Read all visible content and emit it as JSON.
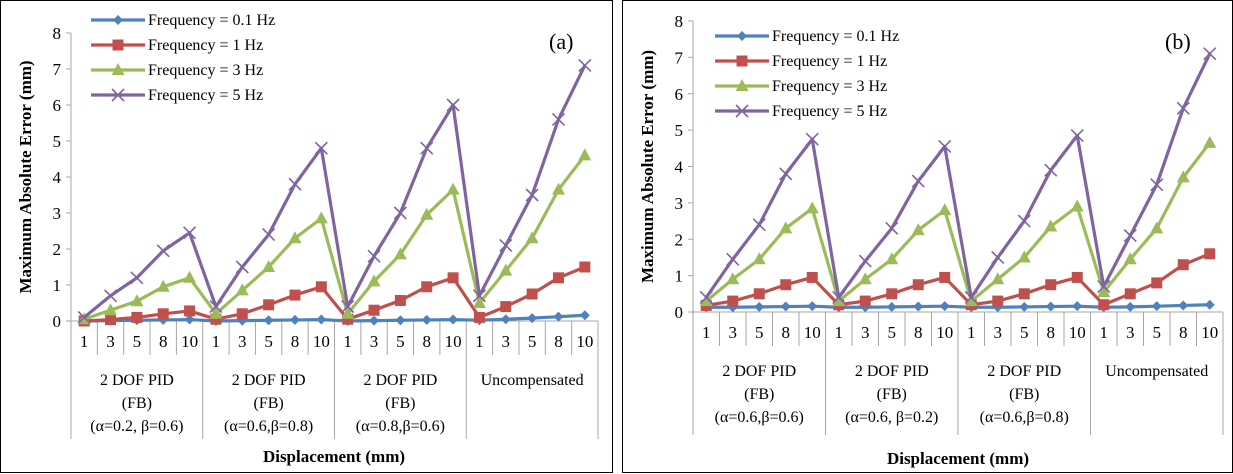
{
  "colors": {
    "f01": "#4F81BD",
    "f1": "#C0504D",
    "f3": "#9BBB59",
    "f5": "#8064A2",
    "axis": "#A6A6A6",
    "text": "#000000"
  },
  "chart_data": [
    {
      "type": "line",
      "panel_label": "(a)",
      "xlabel": "Displacement (mm)",
      "ylabel": "Maximum Absolute Error (mm)",
      "ylim": [
        0,
        8
      ],
      "yticks": [
        "0",
        "1",
        "2",
        "3",
        "4",
        "5",
        "6",
        "7",
        "8"
      ],
      "grid": false,
      "legend_position": "top-left",
      "categories": [
        "1",
        "3",
        "5",
        "8",
        "10",
        "1",
        "3",
        "5",
        "8",
        "10",
        "1",
        "3",
        "5",
        "8",
        "10",
        "1",
        "3",
        "5",
        "8",
        "10"
      ],
      "groups": [
        {
          "lines": [
            "2 DOF PID",
            "(FB)",
            "(α=0.2, β=0.6)"
          ]
        },
        {
          "lines": [
            "2 DOF PID",
            "(FB)",
            "(α=0.6,β=0.8)"
          ]
        },
        {
          "lines": [
            "2 DOF PID",
            "(FB)",
            "(α=0.8,β=0.6)"
          ]
        },
        {
          "lines": [
            "Uncompensated"
          ]
        }
      ],
      "series": [
        {
          "name": "Frequency = 0.1 Hz",
          "color_key": "f01",
          "marker": "diamond",
          "values": [
            0.0,
            0.01,
            0.02,
            0.03,
            0.04,
            0.0,
            0.01,
            0.02,
            0.03,
            0.04,
            0.0,
            0.01,
            0.02,
            0.03,
            0.04,
            0.02,
            0.05,
            0.08,
            0.12,
            0.16
          ]
        },
        {
          "name": "Frequency = 1 Hz",
          "color_key": "f1",
          "marker": "square",
          "values": [
            0.0,
            0.04,
            0.1,
            0.2,
            0.28,
            0.05,
            0.2,
            0.45,
            0.72,
            0.95,
            0.05,
            0.3,
            0.57,
            0.95,
            1.2,
            0.1,
            0.4,
            0.75,
            1.2,
            1.5
          ]
        },
        {
          "name": "Frequency = 3 Hz",
          "color_key": "f3",
          "marker": "triangle",
          "values": [
            0.05,
            0.3,
            0.55,
            0.95,
            1.2,
            0.2,
            0.85,
            1.5,
            2.3,
            2.85,
            0.2,
            1.1,
            1.85,
            2.95,
            3.65,
            0.5,
            1.4,
            2.3,
            3.65,
            4.6
          ]
        },
        {
          "name": "Frequency = 5 Hz",
          "color_key": "f5",
          "marker": "x",
          "values": [
            0.1,
            0.7,
            1.2,
            1.95,
            2.45,
            0.4,
            1.5,
            2.4,
            3.8,
            4.8,
            0.4,
            1.8,
            3.0,
            4.8,
            6.0,
            0.7,
            2.1,
            3.5,
            5.6,
            7.1
          ]
        }
      ]
    },
    {
      "type": "line",
      "panel_label": "(b)",
      "xlabel": "Displacement (mm)",
      "ylabel": "Maximum Absolute Error (mm)",
      "ylim": [
        0,
        8
      ],
      "yticks": [
        "0",
        "1",
        "2",
        "3",
        "4",
        "5",
        "6",
        "7",
        "8"
      ],
      "grid": false,
      "legend_position": "top-left",
      "categories": [
        "1",
        "3",
        "5",
        "8",
        "10",
        "1",
        "3",
        "5",
        "8",
        "10",
        "1",
        "3",
        "5",
        "8",
        "10",
        "1",
        "3",
        "5",
        "8",
        "10"
      ],
      "groups": [
        {
          "lines": [
            "2 DOF PID",
            "(FB)",
            "(α=0.6,β=0.6)"
          ]
        },
        {
          "lines": [
            "2 DOF PID",
            "(FB)",
            "(α=0.6, β=0.2)"
          ]
        },
        {
          "lines": [
            "2 DOF PID",
            "(FB)",
            "(α=0.6,β=0.8)"
          ]
        },
        {
          "lines": [
            "Uncompensated"
          ]
        }
      ],
      "series": [
        {
          "name": "Frequency = 0.1 Hz",
          "color_key": "f01",
          "marker": "diamond",
          "values": [
            0.13,
            0.13,
            0.14,
            0.15,
            0.16,
            0.13,
            0.13,
            0.14,
            0.15,
            0.16,
            0.13,
            0.13,
            0.14,
            0.15,
            0.16,
            0.13,
            0.14,
            0.16,
            0.18,
            0.2
          ]
        },
        {
          "name": "Frequency = 1 Hz",
          "color_key": "f1",
          "marker": "square",
          "values": [
            0.18,
            0.3,
            0.5,
            0.75,
            0.95,
            0.2,
            0.3,
            0.5,
            0.75,
            0.95,
            0.2,
            0.3,
            0.5,
            0.75,
            0.95,
            0.2,
            0.5,
            0.8,
            1.3,
            1.6
          ]
        },
        {
          "name": "Frequency = 3 Hz",
          "color_key": "f3",
          "marker": "triangle",
          "values": [
            0.3,
            0.9,
            1.45,
            2.3,
            2.85,
            0.3,
            0.9,
            1.45,
            2.25,
            2.8,
            0.3,
            0.9,
            1.5,
            2.35,
            2.9,
            0.55,
            1.45,
            2.3,
            3.7,
            4.65
          ]
        },
        {
          "name": "Frequency = 5 Hz",
          "color_key": "f5",
          "marker": "x",
          "values": [
            0.4,
            1.45,
            2.4,
            3.8,
            4.75,
            0.4,
            1.4,
            2.3,
            3.6,
            4.55,
            0.4,
            1.5,
            2.5,
            3.9,
            4.85,
            0.7,
            2.1,
            3.5,
            5.6,
            7.1
          ]
        }
      ]
    }
  ]
}
